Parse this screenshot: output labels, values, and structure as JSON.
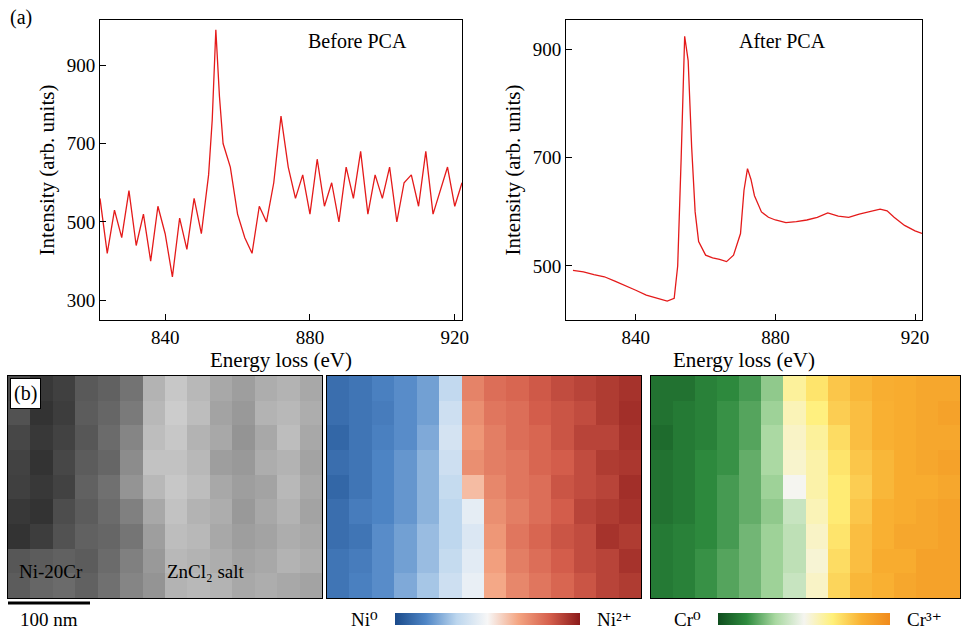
{
  "chart_data": [
    {
      "type": "line",
      "panel_label": "(a)",
      "title": "Before PCA",
      "xlabel": "Energy loss (eV)",
      "ylabel": "Intensity (arb. units)",
      "color": "#e41a1a",
      "grid": false,
      "xlim": [
        822,
        922
      ],
      "xticks": [
        840,
        880,
        920
      ],
      "ylim": [
        250,
        1015
      ],
      "yticks": [
        300,
        500,
        700,
        900
      ],
      "x": [
        822,
        824,
        826,
        828,
        830,
        832,
        834,
        836,
        838,
        840,
        842,
        844,
        846,
        848,
        850,
        852,
        853,
        854,
        855,
        856,
        858,
        860,
        862,
        864,
        866,
        868,
        870,
        872,
        874,
        876,
        878,
        880,
        882,
        884,
        886,
        888,
        890,
        892,
        894,
        896,
        898,
        900,
        902,
        904,
        906,
        908,
        910,
        912,
        914,
        916,
        918,
        920,
        922
      ],
      "values": [
        560,
        420,
        530,
        460,
        580,
        440,
        520,
        400,
        540,
        470,
        360,
        510,
        430,
        560,
        470,
        620,
        760,
        990,
        820,
        700,
        640,
        520,
        460,
        420,
        540,
        500,
        600,
        770,
        640,
        560,
        620,
        520,
        660,
        540,
        600,
        500,
        640,
        560,
        680,
        520,
        620,
        560,
        640,
        500,
        600,
        620,
        540,
        680,
        520,
        580,
        640,
        540,
        600
      ]
    },
    {
      "type": "line",
      "title": "After PCA",
      "xlabel": "Energy loss (eV)",
      "ylabel": "Intensity (arb. units)",
      "color": "#e41a1a",
      "grid": false,
      "xlim": [
        820,
        922
      ],
      "xticks": [
        840,
        880,
        920
      ],
      "ylim": [
        400,
        955
      ],
      "yticks": [
        500,
        700,
        900
      ],
      "x": [
        822,
        825,
        828,
        831,
        834,
        837,
        840,
        843,
        846,
        849,
        851,
        852,
        853,
        854,
        855,
        856,
        857,
        858,
        860,
        862,
        864,
        866,
        868,
        870,
        871,
        872,
        873,
        874,
        876,
        878,
        880,
        883,
        886,
        889,
        892,
        895,
        898,
        901,
        904,
        907,
        910,
        912,
        914,
        917,
        920,
        922
      ],
      "values": [
        492,
        489,
        484,
        480,
        472,
        464,
        455,
        446,
        440,
        435,
        440,
        500,
        700,
        925,
        880,
        720,
        600,
        545,
        520,
        515,
        512,
        508,
        520,
        560,
        640,
        680,
        660,
        630,
        600,
        590,
        585,
        580,
        582,
        585,
        590,
        598,
        592,
        590,
        596,
        600,
        605,
        602,
        590,
        575,
        565,
        560
      ]
    },
    {
      "type": "heatmap",
      "panel_label": "(b)",
      "tick_labels": false,
      "annotations": [
        "Ni-20Cr",
        "ZnCl₂ salt"
      ],
      "scale_bar": "100 nm",
      "zlim": [
        0,
        1
      ],
      "colors": [
        "#000000",
        "#ffffff"
      ],
      "z": [
        [
          0.3,
          0.22,
          0.25,
          0.35,
          0.38,
          0.45,
          0.7,
          0.78,
          0.72,
          0.66,
          0.62,
          0.68,
          0.7,
          0.66
        ],
        [
          0.32,
          0.2,
          0.24,
          0.36,
          0.4,
          0.48,
          0.72,
          0.8,
          0.74,
          0.64,
          0.6,
          0.7,
          0.72,
          0.68
        ],
        [
          0.28,
          0.22,
          0.26,
          0.34,
          0.42,
          0.52,
          0.74,
          0.78,
          0.7,
          0.66,
          0.58,
          0.66,
          0.74,
          0.66
        ],
        [
          0.26,
          0.2,
          0.28,
          0.36,
          0.4,
          0.55,
          0.76,
          0.76,
          0.72,
          0.62,
          0.6,
          0.68,
          0.7,
          0.64
        ],
        [
          0.25,
          0.22,
          0.26,
          0.38,
          0.44,
          0.58,
          0.72,
          0.78,
          0.74,
          0.66,
          0.62,
          0.64,
          0.72,
          0.66
        ],
        [
          0.22,
          0.2,
          0.3,
          0.36,
          0.42,
          0.5,
          0.66,
          0.76,
          0.7,
          0.68,
          0.6,
          0.66,
          0.7,
          0.64
        ],
        [
          0.2,
          0.24,
          0.32,
          0.38,
          0.4,
          0.46,
          0.62,
          0.74,
          0.72,
          0.66,
          0.62,
          0.64,
          0.68,
          0.66
        ],
        [
          0.34,
          0.36,
          0.38,
          0.36,
          0.42,
          0.5,
          0.6,
          0.72,
          0.7,
          0.68,
          0.64,
          0.66,
          0.7,
          0.68
        ],
        [
          0.36,
          0.4,
          0.42,
          0.38,
          0.44,
          0.52,
          0.58,
          0.7,
          0.72,
          0.7,
          0.66,
          0.68,
          0.66,
          0.64
        ]
      ]
    },
    {
      "type": "heatmap",
      "tick_labels": false,
      "zlim": [
        0,
        1
      ],
      "colorbar_labels": [
        "Ni⁰",
        "Ni²⁺"
      ],
      "colors": [
        "#1a4a8a",
        "#4f86c6",
        "#bcd6ee",
        "#f7f7f7",
        "#f4a582",
        "#d6604d",
        "#8b1a1a"
      ],
      "z": [
        [
          0.1,
          0.12,
          0.15,
          0.18,
          0.22,
          0.35,
          0.75,
          0.8,
          0.82,
          0.85,
          0.88,
          0.9,
          0.92,
          0.94
        ],
        [
          0.1,
          0.12,
          0.14,
          0.18,
          0.22,
          0.38,
          0.72,
          0.78,
          0.8,
          0.84,
          0.86,
          0.88,
          0.92,
          0.95
        ],
        [
          0.08,
          0.12,
          0.15,
          0.18,
          0.24,
          0.4,
          0.7,
          0.76,
          0.8,
          0.82,
          0.86,
          0.9,
          0.9,
          0.94
        ],
        [
          0.1,
          0.12,
          0.16,
          0.2,
          0.26,
          0.38,
          0.72,
          0.76,
          0.78,
          0.82,
          0.84,
          0.88,
          0.92,
          0.93
        ],
        [
          0.08,
          0.12,
          0.16,
          0.2,
          0.26,
          0.36,
          0.62,
          0.74,
          0.78,
          0.8,
          0.86,
          0.88,
          0.9,
          0.95
        ],
        [
          0.1,
          0.14,
          0.16,
          0.2,
          0.26,
          0.34,
          0.45,
          0.72,
          0.76,
          0.8,
          0.84,
          0.9,
          0.92,
          0.94
        ],
        [
          0.1,
          0.12,
          0.18,
          0.22,
          0.28,
          0.34,
          0.42,
          0.7,
          0.78,
          0.82,
          0.86,
          0.88,
          0.94,
          0.92
        ],
        [
          0.12,
          0.14,
          0.18,
          0.22,
          0.28,
          0.36,
          0.44,
          0.68,
          0.76,
          0.8,
          0.84,
          0.88,
          0.9,
          0.94
        ],
        [
          0.12,
          0.15,
          0.18,
          0.24,
          0.3,
          0.38,
          0.46,
          0.66,
          0.74,
          0.78,
          0.82,
          0.86,
          0.9,
          0.92
        ]
      ]
    },
    {
      "type": "heatmap",
      "tick_labels": false,
      "zlim": [
        0,
        1
      ],
      "colorbar_labels": [
        "Cr⁰",
        "Cr³⁺"
      ],
      "colors": [
        "#0f4d1e",
        "#2e8b3e",
        "#a8d8a0",
        "#f5f5f0",
        "#fff07a",
        "#f9b233",
        "#f08a1c"
      ],
      "z": [
        [
          0.1,
          0.1,
          0.14,
          0.16,
          0.2,
          0.3,
          0.62,
          0.7,
          0.78,
          0.82,
          0.85,
          0.86,
          0.88,
          0.88
        ],
        [
          0.1,
          0.12,
          0.14,
          0.18,
          0.22,
          0.32,
          0.58,
          0.66,
          0.76,
          0.8,
          0.84,
          0.86,
          0.88,
          0.9
        ],
        [
          0.08,
          0.12,
          0.14,
          0.18,
          0.22,
          0.34,
          0.56,
          0.62,
          0.72,
          0.8,
          0.84,
          0.86,
          0.88,
          0.88
        ],
        [
          0.1,
          0.12,
          0.16,
          0.18,
          0.24,
          0.34,
          0.55,
          0.6,
          0.7,
          0.78,
          0.82,
          0.86,
          0.88,
          0.9
        ],
        [
          0.1,
          0.12,
          0.16,
          0.2,
          0.24,
          0.32,
          0.5,
          0.6,
          0.68,
          0.76,
          0.82,
          0.86,
          0.86,
          0.88
        ],
        [
          0.1,
          0.12,
          0.16,
          0.2,
          0.24,
          0.3,
          0.4,
          0.58,
          0.68,
          0.78,
          0.84,
          0.86,
          0.88,
          0.9
        ],
        [
          0.12,
          0.14,
          0.16,
          0.2,
          0.26,
          0.32,
          0.38,
          0.56,
          0.7,
          0.8,
          0.84,
          0.88,
          0.88,
          0.9
        ],
        [
          0.12,
          0.14,
          0.18,
          0.22,
          0.26,
          0.32,
          0.38,
          0.54,
          0.72,
          0.8,
          0.86,
          0.86,
          0.9,
          0.9
        ],
        [
          0.12,
          0.14,
          0.18,
          0.22,
          0.26,
          0.32,
          0.4,
          0.56,
          0.74,
          0.82,
          0.84,
          0.88,
          0.9,
          0.9
        ]
      ]
    }
  ]
}
